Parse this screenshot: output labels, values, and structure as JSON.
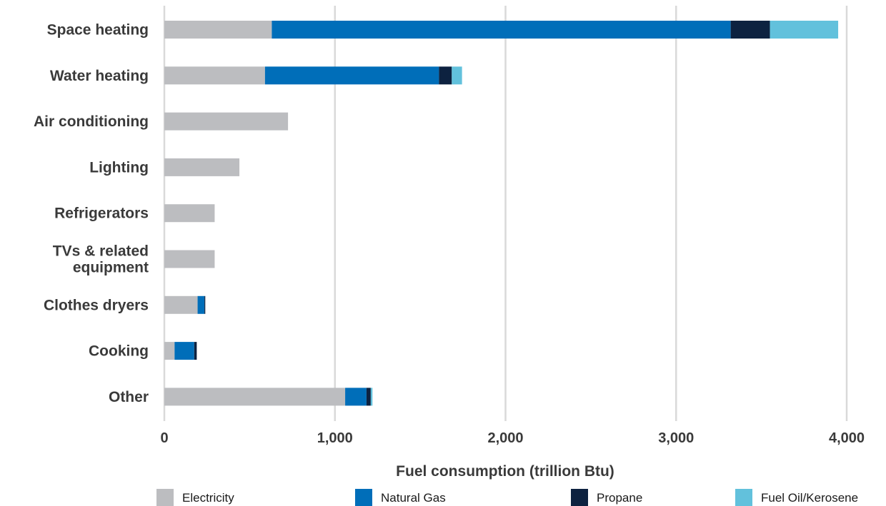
{
  "chart_data": {
    "type": "bar",
    "orientation": "horizontal",
    "stacked": true,
    "categories": [
      "Space heating",
      "Water heating",
      "Air conditioning",
      "Lighting",
      "Refrigerators",
      "TVs & related equipment",
      "Clothes dryers",
      "Cooking",
      "Other"
    ],
    "series": [
      {
        "name": "Electricity",
        "color": "#bcbdc0",
        "values": [
          630,
          590,
          725,
          440,
          295,
          295,
          195,
          60,
          1060
        ]
      },
      {
        "name": "Natural Gas",
        "color": "#006eb9",
        "values": [
          2690,
          1020,
          0,
          0,
          0,
          0,
          40,
          115,
          125
        ]
      },
      {
        "name": "Propane",
        "color": "#0d2240",
        "values": [
          230,
          75,
          0,
          0,
          0,
          0,
          5,
          15,
          25
        ]
      },
      {
        "name": "Fuel Oil/Kerosene",
        "color": "#62c1dc",
        "values": [
          400,
          60,
          0,
          0,
          0,
          0,
          0,
          0,
          10
        ]
      }
    ],
    "xlabel": "Fuel consumption (trillion Btu)",
    "xlim": [
      0,
      4000
    ],
    "xticks": [
      0,
      1000,
      2000,
      3000,
      4000
    ],
    "xtick_labels": [
      "0",
      "1,000",
      "2,000",
      "3,000",
      "4,000"
    ],
    "grid": "vertical",
    "legend_position": "bottom"
  }
}
